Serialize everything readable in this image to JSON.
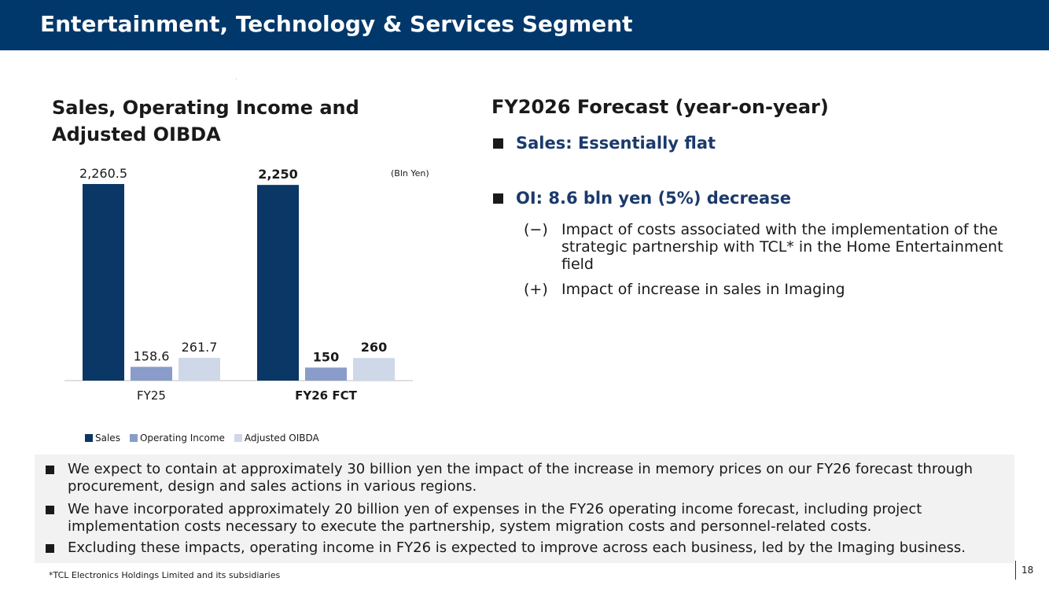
{
  "header": {
    "title": "Entertainment, Technology & Services Segment"
  },
  "chart_data": {
    "type": "bar",
    "title": "Sales, Operating Income and Adjusted OIBDA",
    "unit": "(Bln Yen)",
    "categories": [
      "FY25",
      "FY26 FCT"
    ],
    "series": [
      {
        "name": "Sales",
        "values": [
          2260.5,
          2250
        ],
        "labels": [
          "2,260.5",
          "2,250"
        ],
        "color": "#0b3766"
      },
      {
        "name": "Operating Income",
        "values": [
          158.6,
          150
        ],
        "labels": [
          "158.6",
          "150"
        ],
        "color": "#8a9cc9"
      },
      {
        "name": "Adjusted OIBDA",
        "values": [
          261.7,
          260
        ],
        "labels": [
          "261.7",
          "260"
        ],
        "color": "#cfd8e9"
      }
    ],
    "bold_categories": [
      false,
      true
    ],
    "legend_position": "bottom-left"
  },
  "forecast": {
    "title": "FY2026 Forecast (year-on-year)",
    "sales_point": "Sales: Essentially flat",
    "oi_point": "OI: 8.6 bln yen (5%) decrease",
    "factors": [
      {
        "sign": "(−)",
        "text": "Impact of costs associated with the implementation of the strategic partnership with TCL* in the Home Entertainment field"
      },
      {
        "sign": "(+)",
        "text": "Impact of increase in sales in Imaging"
      }
    ]
  },
  "notes": [
    "We expect to contain at approximately 30 billion yen the impact of the increase in memory prices on our FY26 forecast through procurement, design and sales actions in various regions.",
    "We have incorporated approximately 20 billion yen of expenses in the FY26 operating income forecast, including project implementation costs necessary to execute the partnership, system migration costs and personnel-related costs.",
    "Excluding these impacts, operating income in FY26 is expected to improve across each business, led by the Imaging business."
  ],
  "footnote": "*TCL Electronics Holdings Limited and its subsidiaries",
  "page_number": "18"
}
